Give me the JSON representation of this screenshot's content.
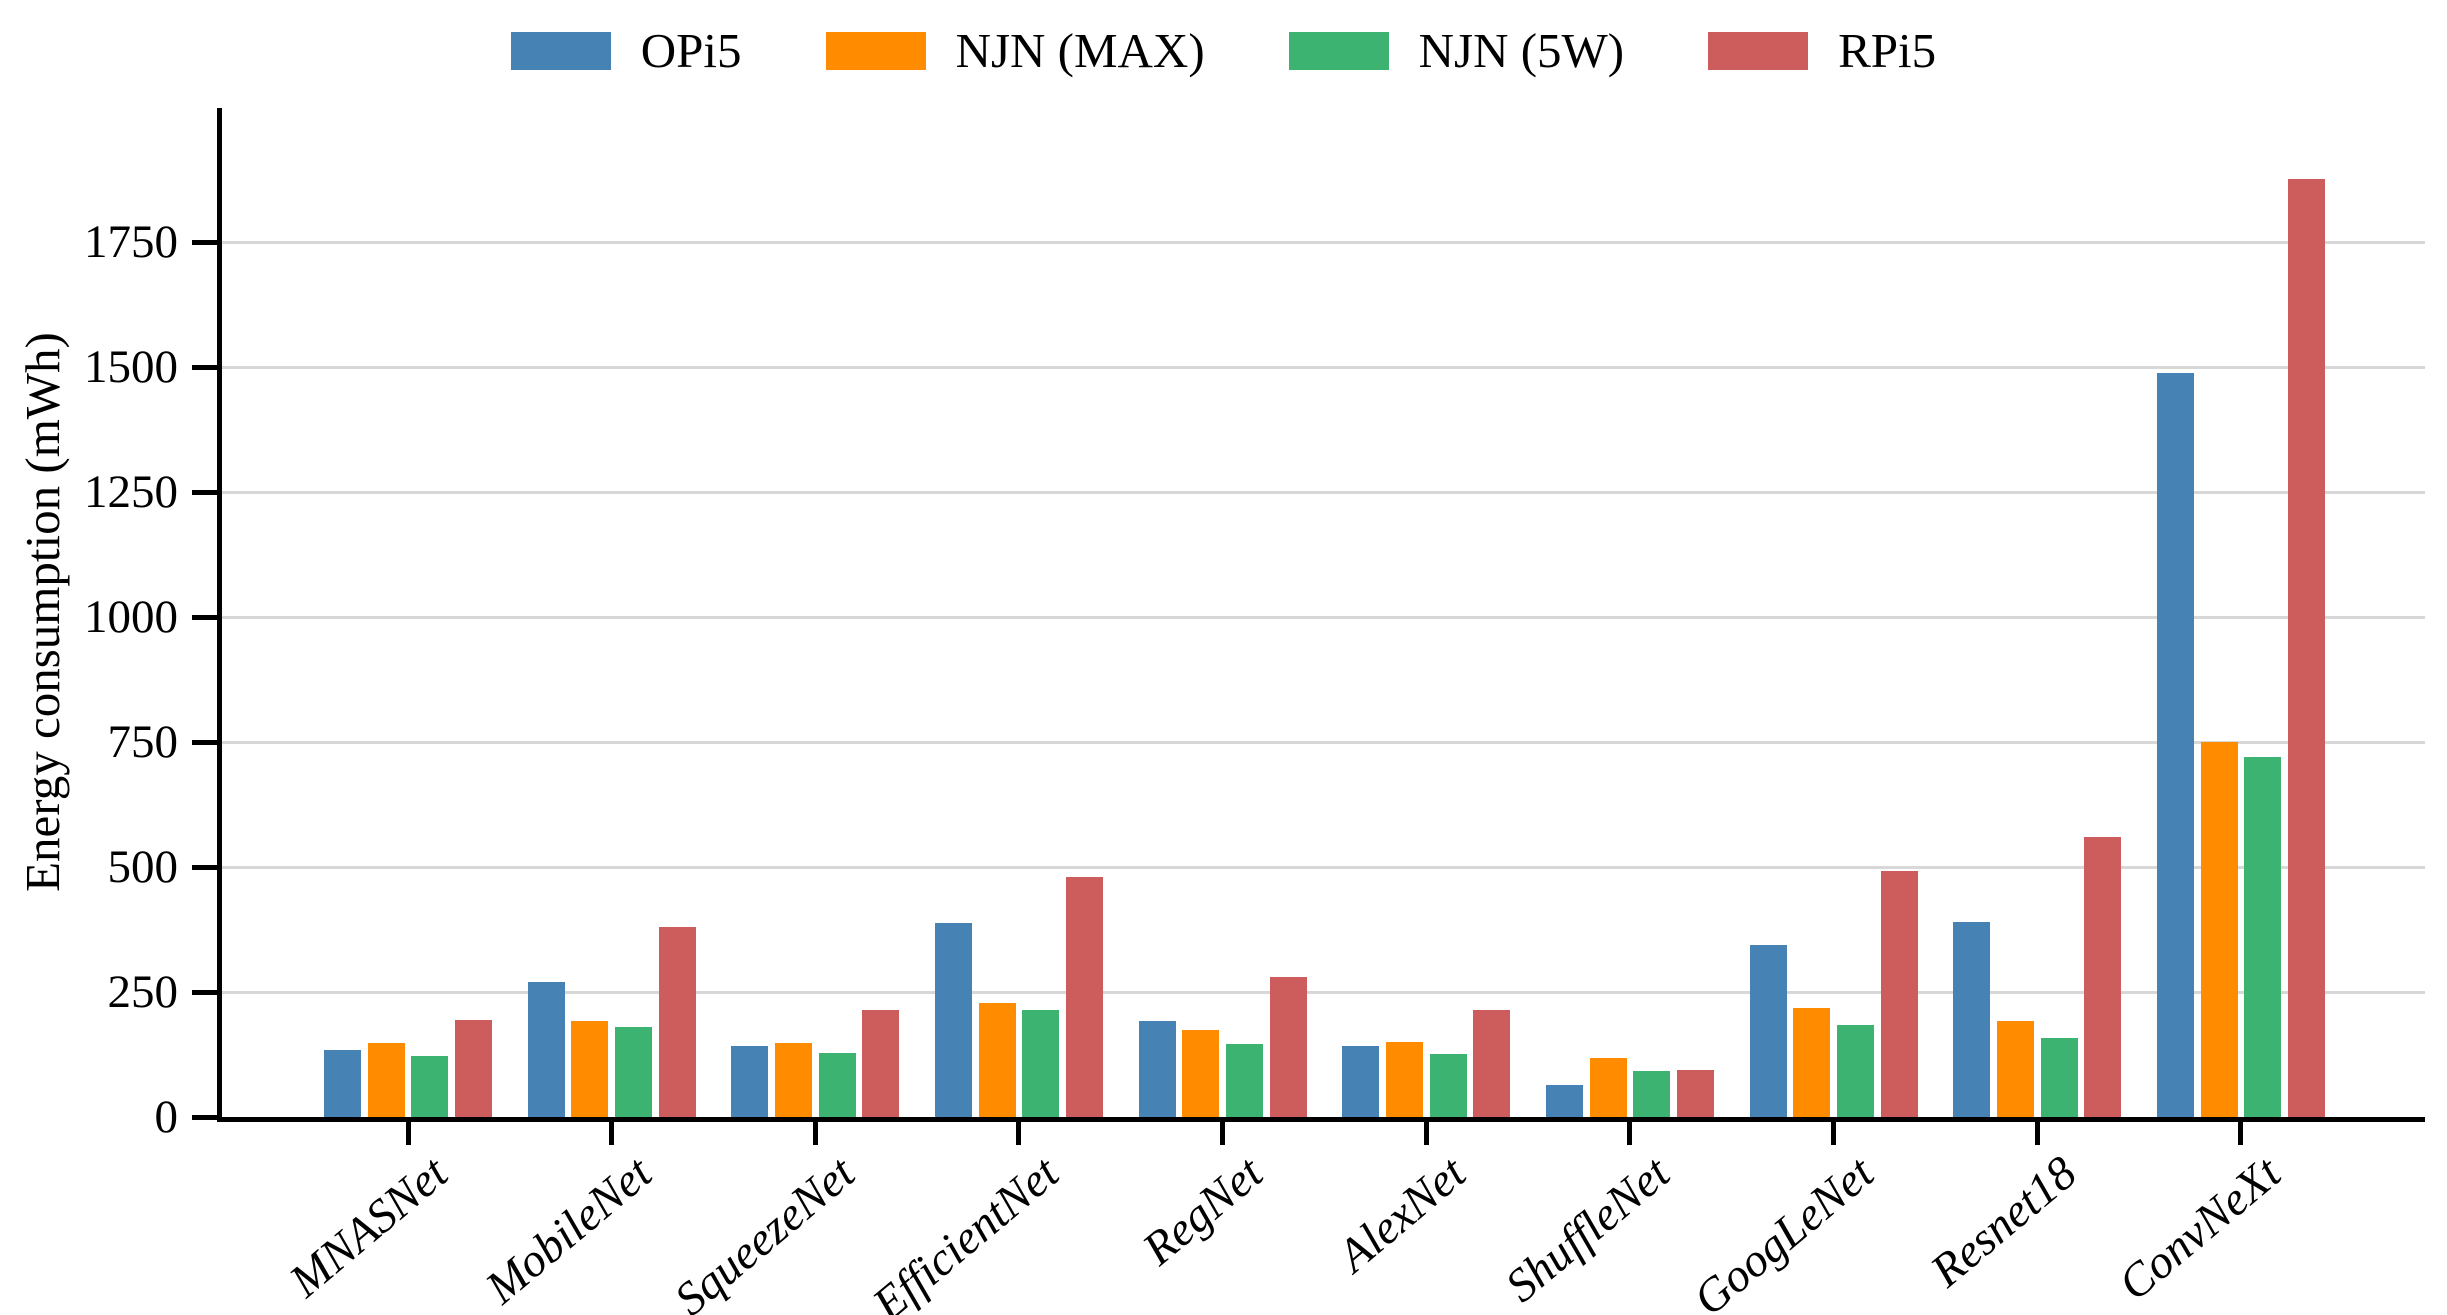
{
  "chart_data": {
    "type": "bar",
    "title": "",
    "xlabel": "",
    "ylabel": "Energy consumption (mWh)",
    "categories": [
      "MNASNet",
      "MobileNet",
      "SqueezeNet",
      "EfficientNet",
      "RegNet",
      "AlexNet",
      "ShuffleNet",
      "GoogLeNet",
      "Resnet18",
      "ConvNeXt"
    ],
    "series": [
      {
        "name": "OPi5",
        "color": "#4682B4",
        "values": [
          135,
          270,
          143,
          388,
          192,
          143,
          64,
          345,
          390,
          1488
        ]
      },
      {
        "name": "NJN (MAX)",
        "color": "#FF8C00",
        "values": [
          148,
          192,
          148,
          228,
          174,
          150,
          118,
          218,
          193,
          750
        ]
      },
      {
        "name": "NJN (5W)",
        "color": "#3CB371",
        "values": [
          122,
          180,
          128,
          214,
          146,
          127,
          92,
          184,
          158,
          720
        ]
      },
      {
        "name": "RPi5",
        "color": "#CD5C5C",
        "values": [
          195,
          380,
          214,
          480,
          280,
          214,
          95,
          492,
          560,
          1876
        ]
      }
    ],
    "yticks": [
      0,
      250,
      500,
      750,
      1000,
      1250,
      1500,
      1750
    ],
    "ylim": [
      0,
      2014
    ],
    "grid": "horizontal",
    "gridline_color": "#d8d8d8",
    "axis_color": "#000000",
    "legend_position": "top-center",
    "x_tick_label_rotation_deg": 40,
    "x_tick_label_style": "italic"
  }
}
